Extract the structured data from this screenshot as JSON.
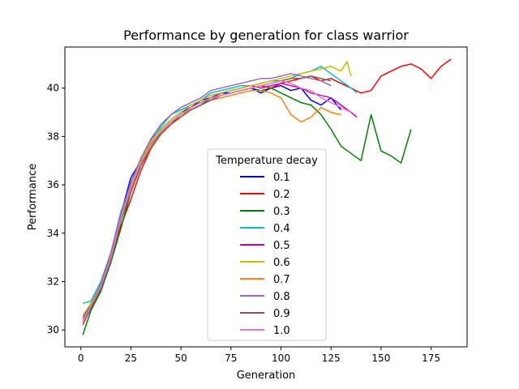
{
  "chart_data": {
    "type": "line",
    "title": "Performance by generation for class warrior",
    "xlabel": "Generation",
    "ylabel": "Performance",
    "xlim": [
      -8,
      193
    ],
    "ylim": [
      29.3,
      41.7
    ],
    "xticks": [
      0,
      25,
      50,
      75,
      100,
      125,
      150,
      175
    ],
    "yticks": [
      30,
      32,
      34,
      36,
      38,
      40
    ],
    "grid": false,
    "legend": {
      "title": "Temperature decay",
      "placement": "lower-center"
    },
    "series": [
      {
        "name": "0.1",
        "color": "#0000ff",
        "points": [
          [
            1,
            30.5
          ],
          [
            5,
            31.1
          ],
          [
            10,
            31.9
          ],
          [
            15,
            33.0
          ],
          [
            20,
            34.8
          ],
          [
            25,
            36.3
          ],
          [
            30,
            37.0
          ],
          [
            35,
            37.9
          ],
          [
            40,
            38.3
          ],
          [
            45,
            38.7
          ],
          [
            50,
            39.0
          ],
          [
            55,
            39.2
          ],
          [
            60,
            39.5
          ],
          [
            65,
            39.6
          ],
          [
            70,
            39.8
          ],
          [
            75,
            39.8
          ],
          [
            80,
            39.9
          ],
          [
            85,
            40.0
          ],
          [
            90,
            39.8
          ],
          [
            95,
            40.0
          ],
          [
            100,
            40.1
          ],
          [
            105,
            39.9
          ],
          [
            110,
            40.0
          ],
          [
            115,
            39.5
          ],
          [
            120,
            39.3
          ],
          [
            125,
            39.6
          ],
          [
            130,
            39.1
          ]
        ]
      },
      {
        "name": "0.2",
        "color": "#ff0000",
        "points": [
          [
            1,
            30.3
          ],
          [
            5,
            30.9
          ],
          [
            10,
            31.7
          ],
          [
            15,
            32.9
          ],
          [
            20,
            34.3
          ],
          [
            25,
            35.4
          ],
          [
            30,
            36.6
          ],
          [
            35,
            37.5
          ],
          [
            40,
            38.1
          ],
          [
            45,
            38.5
          ],
          [
            50,
            38.9
          ],
          [
            55,
            39.2
          ],
          [
            60,
            39.4
          ],
          [
            65,
            39.6
          ],
          [
            70,
            39.7
          ],
          [
            75,
            39.8
          ],
          [
            80,
            39.9
          ],
          [
            85,
            40.0
          ],
          [
            90,
            40.1
          ],
          [
            95,
            40.0
          ],
          [
            100,
            40.2
          ],
          [
            105,
            40.3
          ],
          [
            110,
            40.4
          ],
          [
            115,
            40.5
          ],
          [
            120,
            40.3
          ],
          [
            125,
            40.4
          ],
          [
            130,
            40.2
          ],
          [
            135,
            40.0
          ],
          [
            140,
            39.8
          ],
          [
            145,
            39.9
          ],
          [
            150,
            40.5
          ],
          [
            155,
            40.7
          ],
          [
            160,
            40.9
          ],
          [
            165,
            41.0
          ],
          [
            170,
            40.8
          ],
          [
            175,
            40.4
          ],
          [
            180,
            40.9
          ],
          [
            185,
            41.2
          ]
        ]
      },
      {
        "name": "0.3",
        "color": "#008000",
        "points": [
          [
            1,
            29.8
          ],
          [
            5,
            30.8
          ],
          [
            10,
            31.6
          ],
          [
            15,
            32.8
          ],
          [
            20,
            34.2
          ],
          [
            25,
            35.7
          ],
          [
            30,
            36.8
          ],
          [
            35,
            37.6
          ],
          [
            40,
            38.2
          ],
          [
            45,
            38.6
          ],
          [
            50,
            38.9
          ],
          [
            55,
            39.1
          ],
          [
            60,
            39.3
          ],
          [
            65,
            39.6
          ],
          [
            70,
            39.7
          ],
          [
            75,
            39.8
          ],
          [
            80,
            39.9
          ],
          [
            85,
            40.0
          ],
          [
            90,
            39.9
          ],
          [
            95,
            40.0
          ],
          [
            100,
            39.8
          ],
          [
            105,
            39.6
          ],
          [
            110,
            39.4
          ],
          [
            115,
            39.3
          ],
          [
            120,
            38.9
          ],
          [
            125,
            38.3
          ],
          [
            130,
            37.6
          ],
          [
            135,
            37.3
          ],
          [
            140,
            37.0
          ],
          [
            145,
            38.9
          ],
          [
            150,
            37.4
          ],
          [
            155,
            37.2
          ],
          [
            160,
            36.9
          ],
          [
            165,
            38.3
          ]
        ]
      },
      {
        "name": "0.4",
        "color": "#00bfbf",
        "points": [
          [
            1,
            31.1
          ],
          [
            5,
            31.2
          ],
          [
            10,
            32.0
          ],
          [
            15,
            33.2
          ],
          [
            20,
            34.9
          ],
          [
            25,
            36.0
          ],
          [
            30,
            37.1
          ],
          [
            35,
            37.8
          ],
          [
            40,
            38.4
          ],
          [
            45,
            38.9
          ],
          [
            50,
            39.1
          ],
          [
            55,
            39.3
          ],
          [
            60,
            39.5
          ],
          [
            65,
            39.8
          ],
          [
            70,
            39.9
          ],
          [
            75,
            40.0
          ],
          [
            80,
            40.1
          ],
          [
            85,
            40.1
          ],
          [
            90,
            40.2
          ],
          [
            95,
            40.3
          ],
          [
            100,
            40.3
          ],
          [
            105,
            40.4
          ],
          [
            110,
            40.6
          ],
          [
            115,
            40.7
          ],
          [
            120,
            40.9
          ],
          [
            125,
            40.6
          ],
          [
            130,
            40.3
          ],
          [
            135,
            40.0
          ],
          [
            138,
            39.8
          ]
        ]
      },
      {
        "name": "0.5",
        "color": "#bf00bf",
        "points": [
          [
            1,
            30.4
          ],
          [
            5,
            31.0
          ],
          [
            10,
            31.8
          ],
          [
            15,
            33.0
          ],
          [
            20,
            34.6
          ],
          [
            25,
            35.9
          ],
          [
            30,
            36.9
          ],
          [
            35,
            37.7
          ],
          [
            40,
            38.2
          ],
          [
            45,
            38.6
          ],
          [
            50,
            38.9
          ],
          [
            55,
            39.2
          ],
          [
            60,
            39.4
          ],
          [
            65,
            39.6
          ],
          [
            70,
            39.8
          ],
          [
            75,
            39.9
          ],
          [
            80,
            40.0
          ],
          [
            85,
            40.1
          ],
          [
            90,
            40.0
          ],
          [
            95,
            40.1
          ],
          [
            100,
            40.2
          ],
          [
            105,
            40.1
          ],
          [
            110,
            40.0
          ],
          [
            115,
            39.8
          ],
          [
            120,
            39.7
          ],
          [
            125,
            39.6
          ],
          [
            130,
            39.3
          ],
          [
            135,
            39.0
          ],
          [
            138,
            38.8
          ]
        ]
      },
      {
        "name": "0.6",
        "color": "#bfbf00",
        "points": [
          [
            1,
            30.6
          ],
          [
            5,
            31.1
          ],
          [
            10,
            31.9
          ],
          [
            15,
            33.1
          ],
          [
            20,
            34.7
          ],
          [
            25,
            36.0
          ],
          [
            30,
            37.0
          ],
          [
            35,
            37.8
          ],
          [
            40,
            38.3
          ],
          [
            45,
            38.7
          ],
          [
            50,
            39.0
          ],
          [
            55,
            39.3
          ],
          [
            60,
            39.5
          ],
          [
            65,
            39.7
          ],
          [
            70,
            39.8
          ],
          [
            75,
            39.9
          ],
          [
            80,
            40.0
          ],
          [
            85,
            40.1
          ],
          [
            90,
            40.2
          ],
          [
            95,
            40.3
          ],
          [
            100,
            40.4
          ],
          [
            105,
            40.5
          ],
          [
            110,
            40.6
          ],
          [
            115,
            40.7
          ],
          [
            120,
            40.8
          ],
          [
            125,
            40.9
          ],
          [
            130,
            40.7
          ],
          [
            133,
            41.1
          ],
          [
            135,
            40.5
          ]
        ]
      },
      {
        "name": "0.7",
        "color": "#ff7f0e",
        "points": [
          [
            1,
            30.4
          ],
          [
            5,
            31.0
          ],
          [
            10,
            31.8
          ],
          [
            15,
            33.0
          ],
          [
            20,
            34.6
          ],
          [
            25,
            35.8
          ],
          [
            30,
            36.9
          ],
          [
            35,
            37.6
          ],
          [
            40,
            38.1
          ],
          [
            45,
            38.6
          ],
          [
            50,
            38.9
          ],
          [
            55,
            39.1
          ],
          [
            60,
            39.3
          ],
          [
            65,
            39.5
          ],
          [
            70,
            39.6
          ],
          [
            75,
            39.7
          ],
          [
            80,
            39.8
          ],
          [
            85,
            39.9
          ],
          [
            90,
            39.9
          ],
          [
            95,
            39.8
          ],
          [
            100,
            39.6
          ],
          [
            105,
            38.9
          ],
          [
            110,
            38.6
          ],
          [
            115,
            38.8
          ],
          [
            120,
            39.2
          ],
          [
            125,
            39.0
          ],
          [
            130,
            38.9
          ]
        ]
      },
      {
        "name": "0.8",
        "color": "#9467bd",
        "points": [
          [
            1,
            30.5
          ],
          [
            5,
            31.0
          ],
          [
            10,
            31.9
          ],
          [
            15,
            33.2
          ],
          [
            20,
            34.8
          ],
          [
            25,
            36.1
          ],
          [
            30,
            37.1
          ],
          [
            35,
            37.9
          ],
          [
            40,
            38.5
          ],
          [
            45,
            38.9
          ],
          [
            50,
            39.2
          ],
          [
            55,
            39.4
          ],
          [
            60,
            39.6
          ],
          [
            65,
            39.9
          ],
          [
            70,
            40.0
          ],
          [
            75,
            40.1
          ],
          [
            80,
            40.2
          ],
          [
            85,
            40.3
          ],
          [
            90,
            40.4
          ],
          [
            95,
            40.4
          ],
          [
            100,
            40.5
          ],
          [
            105,
            40.6
          ],
          [
            110,
            40.5
          ],
          [
            115,
            40.4
          ],
          [
            120,
            40.3
          ],
          [
            125,
            40.1
          ]
        ]
      },
      {
        "name": "0.9",
        "color": "#8c564b",
        "points": [
          [
            1,
            30.2
          ],
          [
            5,
            30.9
          ],
          [
            10,
            31.7
          ],
          [
            15,
            32.9
          ],
          [
            20,
            34.5
          ],
          [
            25,
            35.7
          ],
          [
            30,
            36.8
          ],
          [
            35,
            37.5
          ],
          [
            40,
            38.1
          ],
          [
            45,
            38.5
          ],
          [
            50,
            38.8
          ],
          [
            55,
            39.1
          ],
          [
            60,
            39.3
          ],
          [
            65,
            39.5
          ],
          [
            70,
            39.7
          ],
          [
            75,
            39.8
          ],
          [
            80,
            39.9
          ],
          [
            85,
            40.0
          ],
          [
            90,
            40.1
          ],
          [
            95,
            40.2
          ],
          [
            100,
            40.3
          ],
          [
            105,
            40.4
          ],
          [
            110,
            40.4
          ],
          [
            115,
            40.5
          ],
          [
            120,
            40.4
          ],
          [
            125,
            40.3
          ]
        ]
      },
      {
        "name": "1.0",
        "color": "#e377c2",
        "points": [
          [
            1,
            30.3
          ],
          [
            5,
            31.0
          ],
          [
            10,
            31.8
          ],
          [
            15,
            33.0
          ],
          [
            20,
            34.6
          ],
          [
            25,
            35.9
          ],
          [
            30,
            36.9
          ],
          [
            35,
            37.7
          ],
          [
            40,
            38.2
          ],
          [
            45,
            38.6
          ],
          [
            50,
            38.9
          ],
          [
            55,
            39.2
          ],
          [
            60,
            39.4
          ],
          [
            65,
            39.6
          ],
          [
            70,
            39.7
          ],
          [
            75,
            39.8
          ],
          [
            80,
            39.9
          ],
          [
            85,
            40.0
          ],
          [
            90,
            40.1
          ],
          [
            95,
            40.2
          ],
          [
            100,
            40.3
          ],
          [
            105,
            40.2
          ],
          [
            110,
            40.0
          ],
          [
            115,
            39.9
          ],
          [
            120,
            39.6
          ],
          [
            125,
            39.4
          ],
          [
            130,
            39.2
          ],
          [
            135,
            39.0
          ]
        ]
      }
    ]
  }
}
